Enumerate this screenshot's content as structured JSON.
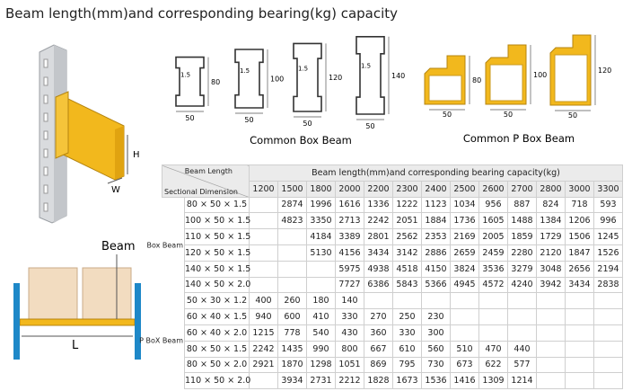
{
  "title": "Beam length(mm)and corresponding bearing(kg) capacity",
  "rack_illustration": {
    "height_label": "H",
    "width_label": "W"
  },
  "box_beams": {
    "caption": "Common Box Beam",
    "profiles": [
      {
        "thickness": 1.5,
        "height": 80,
        "width": 50
      },
      {
        "thickness": 1.5,
        "height": 100,
        "width": 50
      },
      {
        "thickness": 1.5,
        "height": 120,
        "width": 50
      },
      {
        "thickness": 1.5,
        "height": 140,
        "width": 50
      }
    ]
  },
  "p_box_beams": {
    "caption": "Common P Box Beam",
    "profiles": [
      {
        "height": 80,
        "width": 50
      },
      {
        "height": 100,
        "width": 50
      },
      {
        "height": 120,
        "width": 50
      }
    ]
  },
  "frame_illustration": {
    "beam_label": "Beam",
    "length_label": "L"
  },
  "table": {
    "corner_top": "Beam Length",
    "corner_bottom": "Sectional Dimension",
    "group_header": "Beam length(mm)and corresponding bearing capacity(kg)",
    "lengths": [
      1200,
      1500,
      1800,
      2000,
      2200,
      2300,
      2400,
      2500,
      2600,
      2700,
      2800,
      3000,
      3300
    ],
    "groups": [
      {
        "name": "Box Beam",
        "rows": [
          {
            "section": "80 × 50 × 1.5",
            "values": [
              null,
              2874,
              1996,
              1616,
              1336,
              1222,
              1123,
              1034,
              956,
              887,
              824,
              718,
              593
            ]
          },
          {
            "section": "100 × 50 × 1.5",
            "values": [
              null,
              4823,
              3350,
              2713,
              2242,
              2051,
              1884,
              1736,
              1605,
              1488,
              1384,
              1206,
              996
            ]
          },
          {
            "section": "110 × 50 × 1.5",
            "values": [
              null,
              null,
              4184,
              3389,
              2801,
              2562,
              2353,
              2169,
              2005,
              1859,
              1729,
              1506,
              1245
            ]
          },
          {
            "section": "120 × 50 × 1.5",
            "values": [
              null,
              null,
              5130,
              4156,
              3434,
              3142,
              2886,
              2659,
              2459,
              2280,
              2120,
              1847,
              1526
            ]
          },
          {
            "section": "140 × 50 × 1.5",
            "values": [
              null,
              null,
              null,
              5975,
              4938,
              4518,
              4150,
              3824,
              3536,
              3279,
              3048,
              2656,
              2194
            ]
          },
          {
            "section": "140 × 50 × 2.0",
            "values": [
              null,
              null,
              null,
              7727,
              6386,
              5843,
              5366,
              4945,
              4572,
              4240,
              3942,
              3434,
              2838
            ]
          }
        ]
      },
      {
        "name": "P BoX Beam",
        "rows": [
          {
            "section": "50 × 30 × 1.2",
            "values": [
              400,
              260,
              180,
              140,
              null,
              null,
              null,
              null,
              null,
              null,
              null,
              null,
              null
            ]
          },
          {
            "section": "60 × 40 × 1.5",
            "values": [
              940,
              600,
              410,
              330,
              270,
              250,
              230,
              null,
              null,
              null,
              null,
              null,
              null
            ]
          },
          {
            "section": "60 × 40 × 2.0",
            "values": [
              1215,
              778,
              540,
              430,
              360,
              330,
              300,
              null,
              null,
              null,
              null,
              null,
              null
            ]
          },
          {
            "section": "80 × 50 × 1.5",
            "values": [
              2242,
              1435,
              990,
              800,
              667,
              610,
              560,
              510,
              470,
              440,
              null,
              null,
              null
            ]
          },
          {
            "section": "80 × 50 × 2.0",
            "values": [
              2921,
              1870,
              1298,
              1051,
              869,
              795,
              730,
              673,
              622,
              577,
              null,
              null,
              null
            ]
          },
          {
            "section": "110 × 50 × 2.0",
            "values": [
              null,
              3934,
              2731,
              2212,
              1828,
              1673,
              1536,
              1416,
              1309,
              1214,
              null,
              null,
              null
            ]
          }
        ]
      }
    ]
  }
}
